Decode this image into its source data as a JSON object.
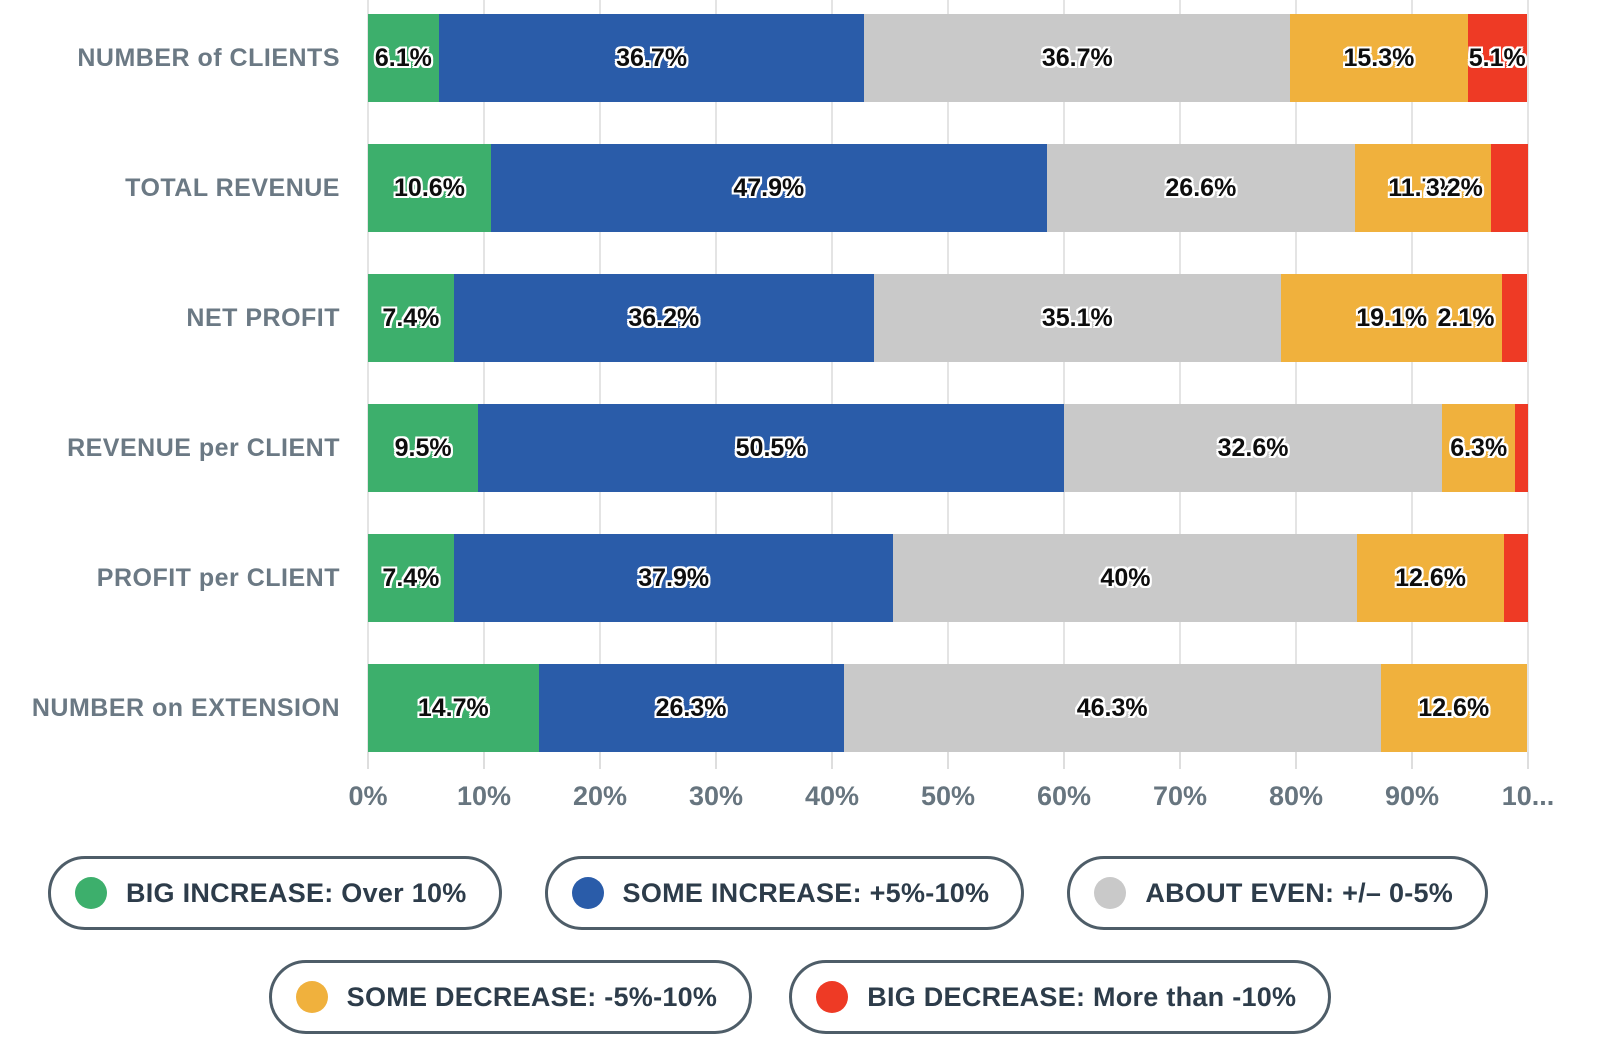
{
  "chart_data": {
    "type": "bar",
    "orientation": "horizontal",
    "stacked": true,
    "title": "",
    "xlabel": "",
    "ylabel": "",
    "xlim": [
      0,
      100
    ],
    "grid": true,
    "legend_position": "bottom",
    "categories": [
      "NUMBER of CLIENTS",
      "TOTAL REVENUE",
      "NET PROFIT",
      "REVENUE per CLIENT",
      "PROFIT per CLIENT",
      "NUMBER on EXTENSION"
    ],
    "series": [
      {
        "name": "BIG INCREASE: Over 10%",
        "color": "#3daf6c",
        "values": [
          6.1,
          10.6,
          7.4,
          9.5,
          7.4,
          14.7
        ]
      },
      {
        "name": "SOME INCREASE: +5%-10%",
        "color": "#2a5ca9",
        "values": [
          36.7,
          47.9,
          36.2,
          50.5,
          37.9,
          26.3
        ]
      },
      {
        "name": "ABOUT EVEN: +/– 0-5%",
        "color": "#c9c9c9",
        "values": [
          36.7,
          26.6,
          35.1,
          32.6,
          40,
          46.3
        ]
      },
      {
        "name": "SOME DECREASE: -5%-10%",
        "color": "#f0b13d",
        "values": [
          15.3,
          11.7,
          19.1,
          6.3,
          12.6,
          12.6
        ]
      },
      {
        "name": "BIG DECREASE: More than -10%",
        "color": "#ee3a25",
        "values": [
          5.1,
          3.2,
          2.1,
          1.1,
          2.1,
          0
        ]
      }
    ],
    "segment_labels": [
      [
        "6.1%",
        "36.7%",
        "36.7%",
        "15.3%",
        "5.1%"
      ],
      [
        "10.6%",
        "47.9%",
        "26.6%",
        "11.7%",
        "3.2%"
      ],
      [
        "7.4%",
        "36.2%",
        "35.1%",
        "19.1%",
        "2.1%"
      ],
      [
        "9.5%",
        "50.5%",
        "32.6%",
        "6.3%",
        ""
      ],
      [
        "7.4%",
        "37.9%",
        "40%",
        "12.6%",
        ""
      ],
      [
        "14.7%",
        "26.3%",
        "46.3%",
        "12.6%",
        ""
      ]
    ],
    "labels_outside_left": [
      [],
      [
        4
      ],
      [
        4
      ],
      [],
      [],
      []
    ],
    "x_ticks": [
      "0%",
      "10%",
      "20%",
      "30%",
      "40%",
      "50%",
      "60%",
      "70%",
      "80%",
      "90%",
      "10..."
    ]
  },
  "legend": {
    "rows": [
      [
        {
          "label": "BIG INCREASE: Over 10%",
          "color": "#3daf6c"
        },
        {
          "label": "SOME INCREASE: +5%-10%",
          "color": "#2a5ca9"
        },
        {
          "label": "ABOUT EVEN: +/– 0-5%",
          "color": "#c9c9c9"
        }
      ],
      [
        {
          "label": "SOME DECREASE: -5%-10%",
          "color": "#f0b13d"
        },
        {
          "label": "BIG DECREASE: More than -10%",
          "color": "#ee3a25"
        }
      ]
    ]
  },
  "colors": {
    "big_increase": "#3daf6c",
    "some_increase": "#2a5ca9",
    "about_even": "#c9c9c9",
    "some_decrease": "#f0b13d",
    "big_decrease": "#ee3a25",
    "gridline": "#e4e4e4",
    "category_label": "#6b7984",
    "axis_label": "#67757f",
    "legend_text": "#2d3c4a",
    "legend_border": "#4e5d68"
  }
}
